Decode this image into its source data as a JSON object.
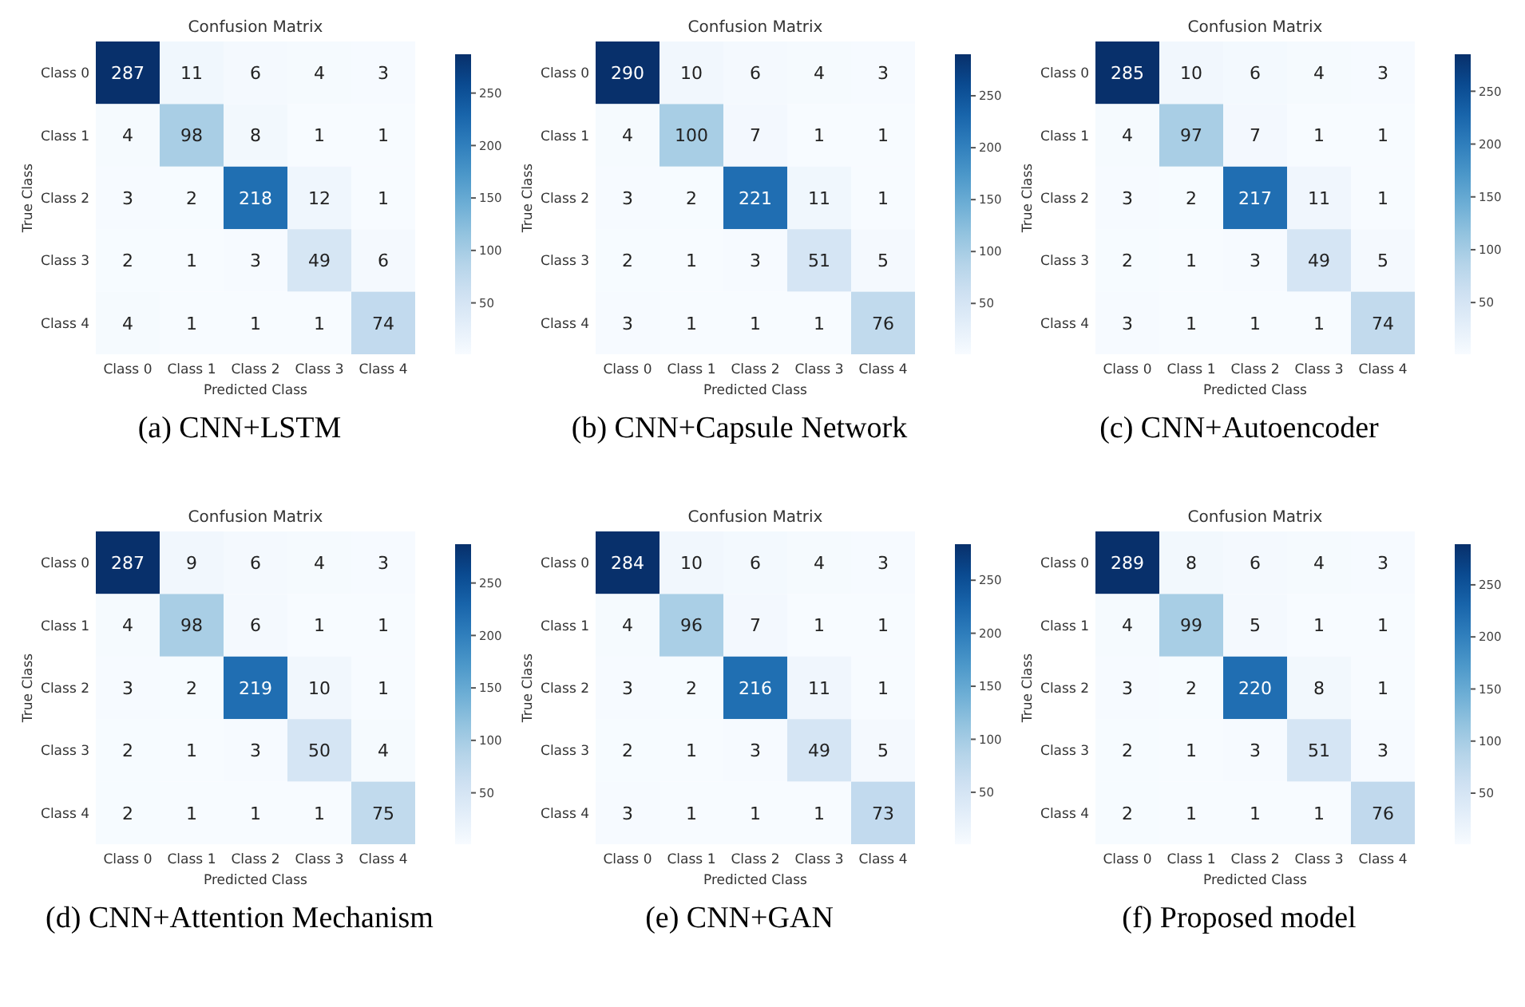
{
  "chart_data": [
    {
      "type": "heatmap",
      "title": "Confusion Matrix",
      "xlabel": "Predicted Class",
      "ylabel": "True Class",
      "annotations": [
        "(a) CNN+LSTM"
      ],
      "categories": [
        "Class 0",
        "Class 1",
        "Class 2",
        "Class 3",
        "Class 4"
      ],
      "y_categories": [
        "Class 0",
        "Class 1",
        "Class 2",
        "Class 3",
        "Class 4"
      ],
      "cells": [
        [
          287,
          11,
          6,
          4,
          3
        ],
        [
          4,
          98,
          8,
          1,
          1
        ],
        [
          3,
          2,
          218,
          12,
          1
        ],
        [
          2,
          1,
          3,
          49,
          6
        ],
        [
          4,
          1,
          1,
          1,
          74
        ]
      ],
      "clim": [
        1,
        287
      ],
      "cticks": [
        50,
        100,
        150,
        200,
        250
      ],
      "data_labels": true
    },
    {
      "type": "heatmap",
      "title": "Confusion Matrix",
      "xlabel": "Predicted Class",
      "ylabel": "True Class",
      "annotations": [
        "(b) CNN+Capsule Network"
      ],
      "categories": [
        "Class 0",
        "Class 1",
        "Class 2",
        "Class 3",
        "Class 4"
      ],
      "y_categories": [
        "Class 0",
        "Class 1",
        "Class 2",
        "Class 3",
        "Class 4"
      ],
      "cells": [
        [
          290,
          10,
          6,
          4,
          3
        ],
        [
          4,
          100,
          7,
          1,
          1
        ],
        [
          3,
          2,
          221,
          11,
          1
        ],
        [
          2,
          1,
          3,
          51,
          5
        ],
        [
          3,
          1,
          1,
          1,
          76
        ]
      ],
      "clim": [
        1,
        290
      ],
      "cticks": [
        50,
        100,
        150,
        200,
        250
      ],
      "data_labels": true
    },
    {
      "type": "heatmap",
      "title": "Confusion Matrix",
      "xlabel": "Predicted Class",
      "ylabel": "True Class",
      "annotations": [
        "(c) CNN+Autoencoder"
      ],
      "categories": [
        "Class 0",
        "Class 1",
        "Class 2",
        "Class 3",
        "Class 4"
      ],
      "y_categories": [
        "Class 0",
        "Class 1",
        "Class 2",
        "Class 3",
        "Class 4"
      ],
      "cells": [
        [
          285,
          10,
          6,
          4,
          3
        ],
        [
          4,
          97,
          7,
          1,
          1
        ],
        [
          3,
          2,
          217,
          11,
          1
        ],
        [
          2,
          1,
          3,
          49,
          5
        ],
        [
          3,
          1,
          1,
          1,
          74
        ]
      ],
      "clim": [
        1,
        285
      ],
      "cticks": [
        50,
        100,
        150,
        200,
        250
      ],
      "data_labels": true
    },
    {
      "type": "heatmap",
      "title": "Confusion Matrix",
      "xlabel": "Predicted Class",
      "ylabel": "True Class",
      "annotations": [
        "(d) CNN+Attention Mechanism"
      ],
      "categories": [
        "Class 0",
        "Class 1",
        "Class 2",
        "Class 3",
        "Class 4"
      ],
      "y_categories": [
        "Class 0",
        "Class 1",
        "Class 2",
        "Class 3",
        "Class 4"
      ],
      "cells": [
        [
          287,
          9,
          6,
          4,
          3
        ],
        [
          4,
          98,
          6,
          1,
          1
        ],
        [
          3,
          2,
          219,
          10,
          1
        ],
        [
          2,
          1,
          3,
          50,
          4
        ],
        [
          2,
          1,
          1,
          1,
          75
        ]
      ],
      "clim": [
        1,
        287
      ],
      "cticks": [
        50,
        100,
        150,
        200,
        250
      ],
      "data_labels": true
    },
    {
      "type": "heatmap",
      "title": "Confusion Matrix",
      "xlabel": "Predicted Class",
      "ylabel": "True Class",
      "annotations": [
        "(e) CNN+GAN"
      ],
      "categories": [
        "Class 0",
        "Class 1",
        "Class 2",
        "Class 3",
        "Class 4"
      ],
      "y_categories": [
        "Class 0",
        "Class 1",
        "Class 2",
        "Class 3",
        "Class 4"
      ],
      "cells": [
        [
          284,
          10,
          6,
          4,
          3
        ],
        [
          4,
          96,
          7,
          1,
          1
        ],
        [
          3,
          2,
          216,
          11,
          1
        ],
        [
          2,
          1,
          3,
          49,
          5
        ],
        [
          3,
          1,
          1,
          1,
          73
        ]
      ],
      "clim": [
        1,
        284
      ],
      "cticks": [
        50,
        100,
        150,
        200,
        250
      ],
      "data_labels": true
    },
    {
      "type": "heatmap",
      "title": "Confusion Matrix",
      "xlabel": "Predicted Class",
      "ylabel": "True Class",
      "annotations": [
        "(f) Proposed model"
      ],
      "categories": [
        "Class 0",
        "Class 1",
        "Class 2",
        "Class 3",
        "Class 4"
      ],
      "y_categories": [
        "Class 0",
        "Class 1",
        "Class 2",
        "Class 3",
        "Class 4"
      ],
      "cells": [
        [
          289,
          8,
          6,
          4,
          3
        ],
        [
          4,
          99,
          5,
          1,
          1
        ],
        [
          3,
          2,
          220,
          8,
          1
        ],
        [
          2,
          1,
          3,
          51,
          3
        ],
        [
          2,
          1,
          1,
          1,
          76
        ]
      ],
      "clim": [
        1,
        289
      ],
      "cticks": [
        50,
        100,
        150,
        200,
        250
      ],
      "data_labels": true
    }
  ]
}
